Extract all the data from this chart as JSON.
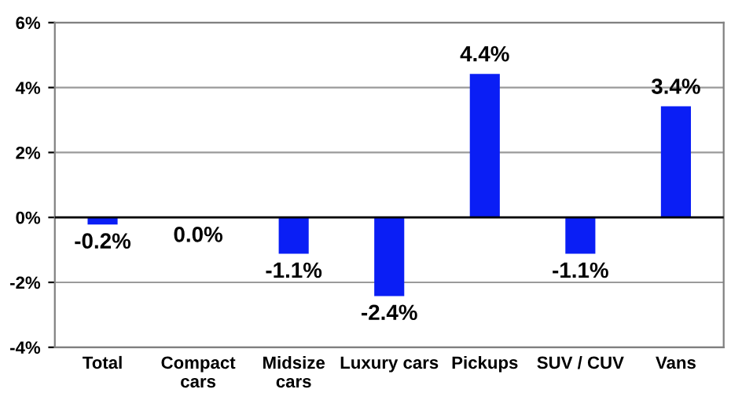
{
  "chart_data": {
    "type": "bar",
    "categories": [
      "Total",
      "Compact\ncars",
      "Midsize\ncars",
      "Luxury cars",
      "Pickups",
      "SUV / CUV",
      "Vans"
    ],
    "values": [
      -0.2,
      0.0,
      -1.1,
      -2.4,
      4.4,
      -1.1,
      3.4
    ],
    "value_labels": [
      "-0.2%",
      "0.0%",
      "-1.1%",
      "-2.4%",
      "4.4%",
      "-1.1%",
      "3.4%"
    ],
    "color": "#0a1ef5",
    "ylim": [
      -4,
      6
    ],
    "yticks": [
      {
        "value": -4,
        "label": "-4%"
      },
      {
        "value": -2,
        "label": "-2%"
      },
      {
        "value": 0,
        "label": "0%"
      },
      {
        "value": 2,
        "label": "2%"
      },
      {
        "value": 4,
        "label": "4%"
      },
      {
        "value": 6,
        "label": "6%"
      }
    ],
    "grid": "y",
    "legend": false
  }
}
